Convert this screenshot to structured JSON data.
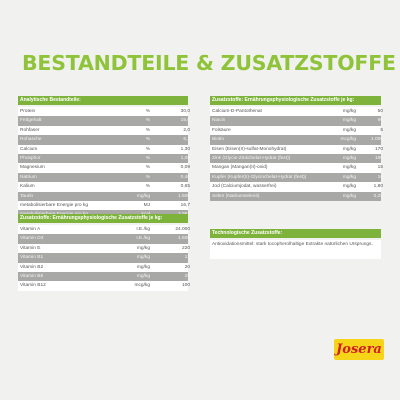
{
  "title": "BESTANDTEILE & ZUSATZSTOFFE",
  "analytical": {
    "header": "Analytische Bestandteile:",
    "rows": [
      {
        "name": "Protein",
        "unit": "%",
        "value": "30,0"
      },
      {
        "name": "Fettgehalt",
        "unit": "%",
        "value": "15,0"
      },
      {
        "name": "Rohfaser",
        "unit": "%",
        "value": "2,0"
      },
      {
        "name": "Rohasche",
        "unit": "%",
        "value": "6,1"
      },
      {
        "name": "Calcium",
        "unit": "%",
        "value": "1,30"
      },
      {
        "name": "Phosphor",
        "unit": "%",
        "value": "1,00"
      },
      {
        "name": "Magnesium",
        "unit": "%",
        "value": "0,09"
      },
      {
        "name": "Natrium",
        "unit": "%",
        "value": "0,40"
      },
      {
        "name": "Kalium",
        "unit": "%",
        "value": "0,65"
      },
      {
        "name": "Taurin",
        "unit": "mg/kg",
        "value": "1.500"
      },
      {
        "name": "metabolisierbare Energie pro kg",
        "unit": "MJ",
        "value": "16,7"
      },
      {
        "name": "metabolisierbare Energie pro kg",
        "unit": "kcal",
        "value": "3.991"
      }
    ]
  },
  "nutritional_left": {
    "header": "Zusatzstoffe: Ernährungsphysiologische Zusatzstoffe je kg:",
    "rows": [
      {
        "name": "Vitamin A",
        "unit": "I.E./kg",
        "value": "24.000"
      },
      {
        "name": "Vitamin D3",
        "unit": "I.E./kg",
        "value": "1.500"
      },
      {
        "name": "Vitamin E",
        "unit": "mg/kg",
        "value": "220"
      },
      {
        "name": "Vitamin B1",
        "unit": "mg/kg",
        "value": "13"
      },
      {
        "name": "Vitamin B2",
        "unit": "mg/kg",
        "value": "20"
      },
      {
        "name": "Vitamin B6",
        "unit": "mg/kg",
        "value": "20"
      },
      {
        "name": "Vitamin B12",
        "unit": "mcg/kg",
        "value": "100"
      }
    ]
  },
  "nutritional_right": {
    "header": "Zusatzstoffe: Ernährungsphysiologische Zusatzstoffe je kg:",
    "rows": [
      {
        "name": "Calcium-D-Pantothenat",
        "unit": "mg/kg",
        "value": "50"
      },
      {
        "name": "Niacin",
        "unit": "mg/kg",
        "value": "90"
      },
      {
        "name": "Folsäure",
        "unit": "mg/kg",
        "value": "5"
      },
      {
        "name": "Biotin",
        "unit": "mcg/kg",
        "value": "1.000"
      },
      {
        "name": "Eisen (Eisen(II)-sulfat-Monohydrat)",
        "unit": "mg/kg",
        "value": "170"
      },
      {
        "name": "Zink (Glycin-Zinkchelat-Hydrat (fest))",
        "unit": "mg/kg",
        "value": "180"
      },
      {
        "name": "Mangan (Mangan(II)-oxid)",
        "unit": "mg/kg",
        "value": "15"
      },
      {
        "name": "Kupfer (Kupfer(II)-Glycinchelat-Hydrat (fest))",
        "unit": "mg/kg",
        "value": "16"
      },
      {
        "name": "Jod (Calciumjodat, wasserfrei)",
        "unit": "mg/kg",
        "value": "1,80"
      },
      {
        "name": "Selen (Natriumselenit)",
        "unit": "mg/kg",
        "value": "0,25"
      }
    ]
  },
  "technological": {
    "header": "Technologische Zusatzstoffe:",
    "text": "Antioxidationsmittel: stark tocopherolhaltige Extrakte natürlichen Ursprungs."
  },
  "logo": "Josera"
}
